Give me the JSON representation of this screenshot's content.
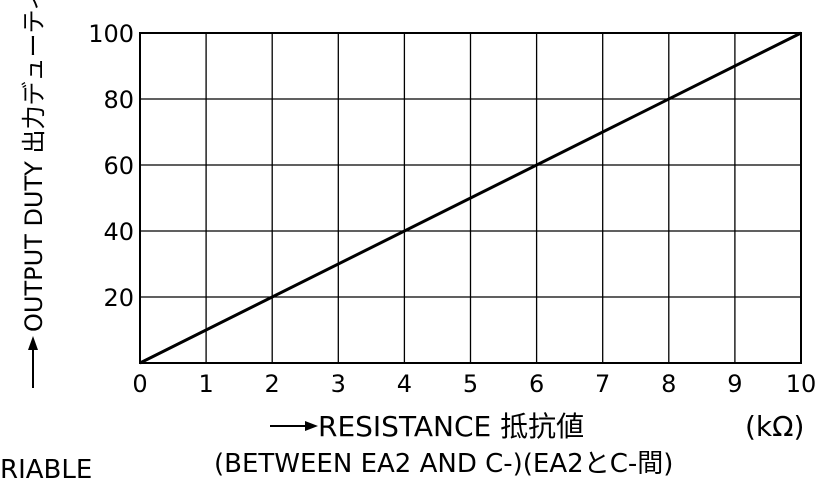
{
  "chart_data": {
    "type": "line",
    "x": [
      0,
      10
    ],
    "series": [
      {
        "values": [
          0,
          100
        ]
      }
    ],
    "xlim": [
      0,
      10
    ],
    "ylim": [
      0,
      100
    ],
    "x_ticks": [
      "0",
      "1",
      "2",
      "3",
      "4",
      "5",
      "6",
      "7",
      "8",
      "9",
      "10"
    ],
    "y_ticks": [
      "20",
      "40",
      "60",
      "80",
      "100"
    ],
    "xlabel": "RESISTANCE 抵抗値",
    "xlabel_sub": "(BETWEEN EA2 AND C-)(EA2とC-間)",
    "xunit": "(kΩ)",
    "ylabel": "OUTPUT DUTY 出力デューティ(%)",
    "grid": true,
    "line_color": "#000000"
  },
  "fragment_text": "RIABLE"
}
